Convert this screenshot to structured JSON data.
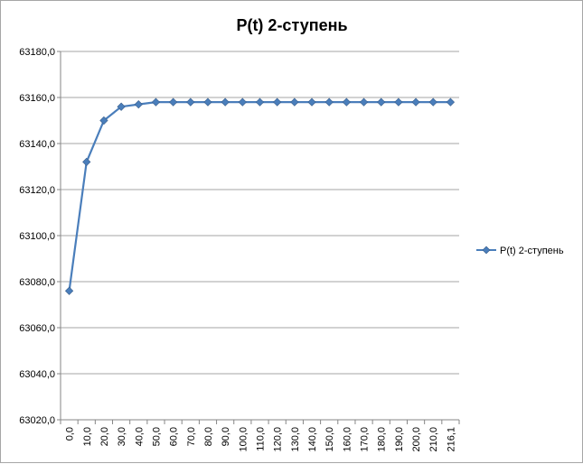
{
  "chart_data": {
    "type": "line",
    "title": "P(t) 2-ступень",
    "xlabel": "",
    "ylabel": "",
    "categories": [
      "0,0",
      "10,0",
      "20,0",
      "30,0",
      "40,0",
      "50,0",
      "60,0",
      "70,0",
      "80,0",
      "90,0",
      "100,0",
      "110,0",
      "120,0",
      "130,0",
      "140,0",
      "150,0",
      "160,0",
      "170,0",
      "180,0",
      "190,0",
      "200,0",
      "210,0",
      "216,1"
    ],
    "series": [
      {
        "name": "P(t) 2-ступень",
        "values": [
          63076,
          63132,
          63150,
          63156,
          63157,
          63158,
          63158,
          63158,
          63158,
          63158,
          63158,
          63158,
          63158,
          63158,
          63158,
          63158,
          63158,
          63158,
          63158,
          63158,
          63158,
          63158,
          63158
        ]
      }
    ],
    "ylim": [
      63020,
      63180
    ],
    "ytick_labels": [
      "63020,0",
      "63040,0",
      "63060,0",
      "63080,0",
      "63100,0",
      "63120,0",
      "63140,0",
      "63160,0",
      "63180,0"
    ],
    "grid": true,
    "legend_position": "right",
    "colors": {
      "series": "#4a7ebb",
      "grid": "#868686",
      "axis": "#868686"
    }
  }
}
